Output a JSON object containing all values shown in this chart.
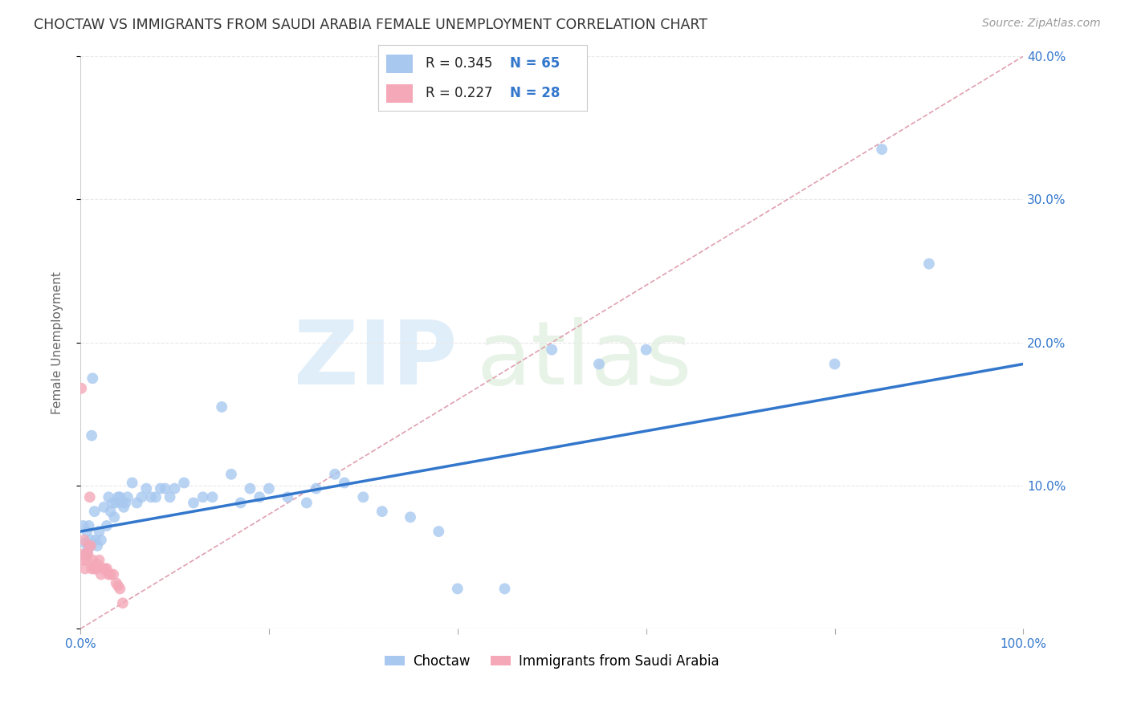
{
  "title": "CHOCTAW VS IMMIGRANTS FROM SAUDI ARABIA FEMALE UNEMPLOYMENT CORRELATION CHART",
  "source": "Source: ZipAtlas.com",
  "ylabel": "Female Unemployment",
  "xlim": [
    0,
    1.0
  ],
  "ylim": [
    0,
    0.4
  ],
  "xticks": [
    0.0,
    0.2,
    0.4,
    0.6,
    0.8,
    1.0
  ],
  "xtick_labels": [
    "0.0%",
    "",
    "",
    "",
    "",
    "100.0%"
  ],
  "yticks": [
    0.0,
    0.1,
    0.2,
    0.3,
    0.4
  ],
  "ytick_right_labels": [
    "",
    "10.0%",
    "20.0%",
    "30.0%",
    "40.0%"
  ],
  "choctaw_R": 0.345,
  "choctaw_N": 65,
  "saudi_R": 0.227,
  "saudi_N": 28,
  "choctaw_color": "#a8c8f0",
  "saudi_color": "#f4a8b8",
  "trendline_color": "#3377cc",
  "diag_line_color": "#e0a0b0",
  "legend_text_color": "#3377cc",
  "background_color": "#ffffff",
  "grid_color": "#e8e8e8",
  "choctaw_x": [
    0.003,
    0.005,
    0.006,
    0.007,
    0.008,
    0.009,
    0.01,
    0.011,
    0.012,
    0.013,
    0.015,
    0.016,
    0.018,
    0.02,
    0.022,
    0.025,
    0.028,
    0.03,
    0.032,
    0.034,
    0.036,
    0.038,
    0.04,
    0.042,
    0.044,
    0.046,
    0.048,
    0.05,
    0.055,
    0.06,
    0.065,
    0.07,
    0.075,
    0.08,
    0.085,
    0.09,
    0.095,
    0.1,
    0.11,
    0.12,
    0.13,
    0.14,
    0.15,
    0.16,
    0.17,
    0.18,
    0.19,
    0.2,
    0.22,
    0.24,
    0.25,
    0.27,
    0.28,
    0.3,
    0.32,
    0.35,
    0.38,
    0.4,
    0.45,
    0.5,
    0.55,
    0.6,
    0.8,
    0.85,
    0.9
  ],
  "choctaw_y": [
    0.072,
    0.06,
    0.052,
    0.068,
    0.055,
    0.072,
    0.058,
    0.062,
    0.135,
    0.175,
    0.082,
    0.062,
    0.058,
    0.068,
    0.062,
    0.085,
    0.072,
    0.092,
    0.082,
    0.088,
    0.078,
    0.088,
    0.092,
    0.092,
    0.088,
    0.085,
    0.088,
    0.092,
    0.102,
    0.088,
    0.092,
    0.098,
    0.092,
    0.092,
    0.098,
    0.098,
    0.092,
    0.098,
    0.102,
    0.088,
    0.092,
    0.092,
    0.155,
    0.108,
    0.088,
    0.098,
    0.092,
    0.098,
    0.092,
    0.088,
    0.098,
    0.108,
    0.102,
    0.092,
    0.082,
    0.078,
    0.068,
    0.028,
    0.028,
    0.195,
    0.185,
    0.195,
    0.185,
    0.335,
    0.255
  ],
  "saudi_x": [
    0.001,
    0.002,
    0.003,
    0.004,
    0.005,
    0.006,
    0.007,
    0.008,
    0.009,
    0.01,
    0.011,
    0.012,
    0.013,
    0.015,
    0.016,
    0.018,
    0.02,
    0.022,
    0.024,
    0.026,
    0.028,
    0.03,
    0.032,
    0.035,
    0.038,
    0.04,
    0.042,
    0.045
  ],
  "saudi_y": [
    0.168,
    0.052,
    0.048,
    0.062,
    0.042,
    0.052,
    0.048,
    0.052,
    0.058,
    0.092,
    0.058,
    0.042,
    0.048,
    0.042,
    0.042,
    0.045,
    0.048,
    0.038,
    0.042,
    0.042,
    0.042,
    0.038,
    0.038,
    0.038,
    0.032,
    0.03,
    0.028,
    0.018
  ],
  "trendline_x": [
    0.0,
    1.0
  ],
  "trendline_y": [
    0.068,
    0.185
  ],
  "diag_line_x": [
    0.0,
    1.0
  ],
  "diag_line_y": [
    0.0,
    0.4
  ]
}
